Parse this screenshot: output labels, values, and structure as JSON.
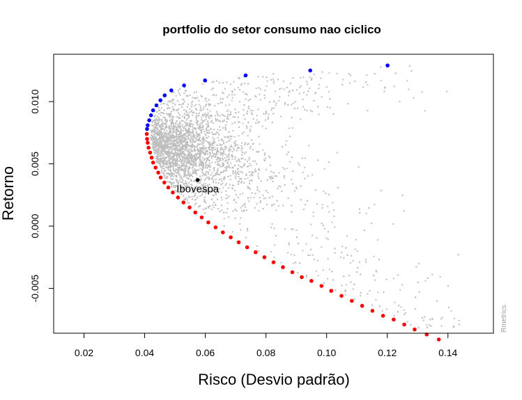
{
  "chart_data": {
    "type": "scatter",
    "title": "portfolio do setor consumo nao ciclico",
    "xlabel": "Risco (Desvio padrão)",
    "ylabel": "Retorno",
    "xlim": [
      0.01,
      0.155
    ],
    "ylim": [
      -0.0086,
      0.0138
    ],
    "x_ticks": [
      0.02,
      0.04,
      0.06,
      0.08,
      0.1,
      0.12,
      0.14
    ],
    "x_tick_labels": [
      "0.02",
      "0.04",
      "0.06",
      "0.08",
      "0.10",
      "0.12",
      "0.14"
    ],
    "y_ticks": [
      -0.005,
      0.0,
      0.005,
      0.01
    ],
    "y_tick_labels": [
      "-0.005",
      "0.000",
      "0.005",
      "0.010"
    ],
    "grid": false,
    "colors": {
      "random_portfolios": "#bebebe",
      "efficient_frontier_upper": "#0000ff",
      "efficient_frontier_lower": "#ff0000",
      "benchmark": "#000000"
    },
    "series": [
      {
        "role": "efficient_frontier_upper",
        "color": "#0000ff",
        "points": [
          [
            0.1201,
            0.0129
          ],
          [
            0.0946,
            0.0125
          ],
          [
            0.0733,
            0.0121
          ],
          [
            0.0599,
            0.0117
          ],
          [
            0.053,
            0.0113
          ],
          [
            0.0488,
            0.0109
          ],
          [
            0.0466,
            0.0105
          ],
          [
            0.0452,
            0.0101
          ],
          [
            0.0439,
            0.0097
          ],
          [
            0.0428,
            0.0093
          ],
          [
            0.0421,
            0.0089
          ],
          [
            0.0415,
            0.0085
          ],
          [
            0.041,
            0.0081
          ],
          [
            0.0408,
            0.0078
          ]
        ]
      },
      {
        "role": "efficient_frontier_lower",
        "color": "#ff0000",
        "points": [
          [
            0.0407,
            0.0074
          ],
          [
            0.0408,
            0.007
          ],
          [
            0.041,
            0.0067
          ],
          [
            0.0413,
            0.0063
          ],
          [
            0.0418,
            0.0059
          ],
          [
            0.0423,
            0.0055
          ],
          [
            0.0428,
            0.0051
          ],
          [
            0.0436,
            0.0047
          ],
          [
            0.0445,
            0.0043
          ],
          [
            0.0453,
            0.0039
          ],
          [
            0.0465,
            0.0035
          ],
          [
            0.0478,
            0.0031
          ],
          [
            0.0493,
            0.0027
          ],
          [
            0.051,
            0.0023
          ],
          [
            0.0528,
            0.0019
          ],
          [
            0.0548,
            0.0015
          ],
          [
            0.0567,
            0.0011
          ],
          [
            0.0588,
            0.0007
          ],
          [
            0.061,
            0.0003
          ],
          [
            0.0634,
            -0.0001
          ],
          [
            0.0658,
            -0.0005
          ],
          [
            0.0684,
            -0.0009
          ],
          [
            0.071,
            -0.0013
          ],
          [
            0.0738,
            -0.0017
          ],
          [
            0.0766,
            -0.0021
          ],
          [
            0.0795,
            -0.0025
          ],
          [
            0.0825,
            -0.0029
          ],
          [
            0.0856,
            -0.0033
          ],
          [
            0.0887,
            -0.0037
          ],
          [
            0.0918,
            -0.0041
          ],
          [
            0.095,
            -0.0044
          ],
          [
            0.0983,
            -0.0048
          ],
          [
            0.1015,
            -0.0052
          ],
          [
            0.1049,
            -0.0056
          ],
          [
            0.1083,
            -0.006
          ],
          [
            0.1117,
            -0.0064
          ],
          [
            0.1151,
            -0.0068
          ],
          [
            0.1186,
            -0.0072
          ],
          [
            0.1221,
            -0.0075
          ],
          [
            0.1256,
            -0.0079
          ],
          [
            0.129,
            -0.0083
          ],
          [
            0.133,
            -0.0087
          ],
          [
            0.137,
            -0.0091
          ]
        ]
      },
      {
        "role": "benchmark",
        "name": "Ibovespa",
        "color": "#000000",
        "points": [
          [
            0.0575,
            0.0037
          ]
        ]
      }
    ],
    "random_portfolios": {
      "color": "#bebebe",
      "count": 4000,
      "x_range": [
        0.0415,
        0.1445
      ],
      "y_range": [
        -0.0082,
        0.0129
      ]
    },
    "annotations": [
      {
        "text": "Ibovespa",
        "x": 0.0575,
        "y": 0.003
      }
    ],
    "watermark": "Rmetrics"
  }
}
